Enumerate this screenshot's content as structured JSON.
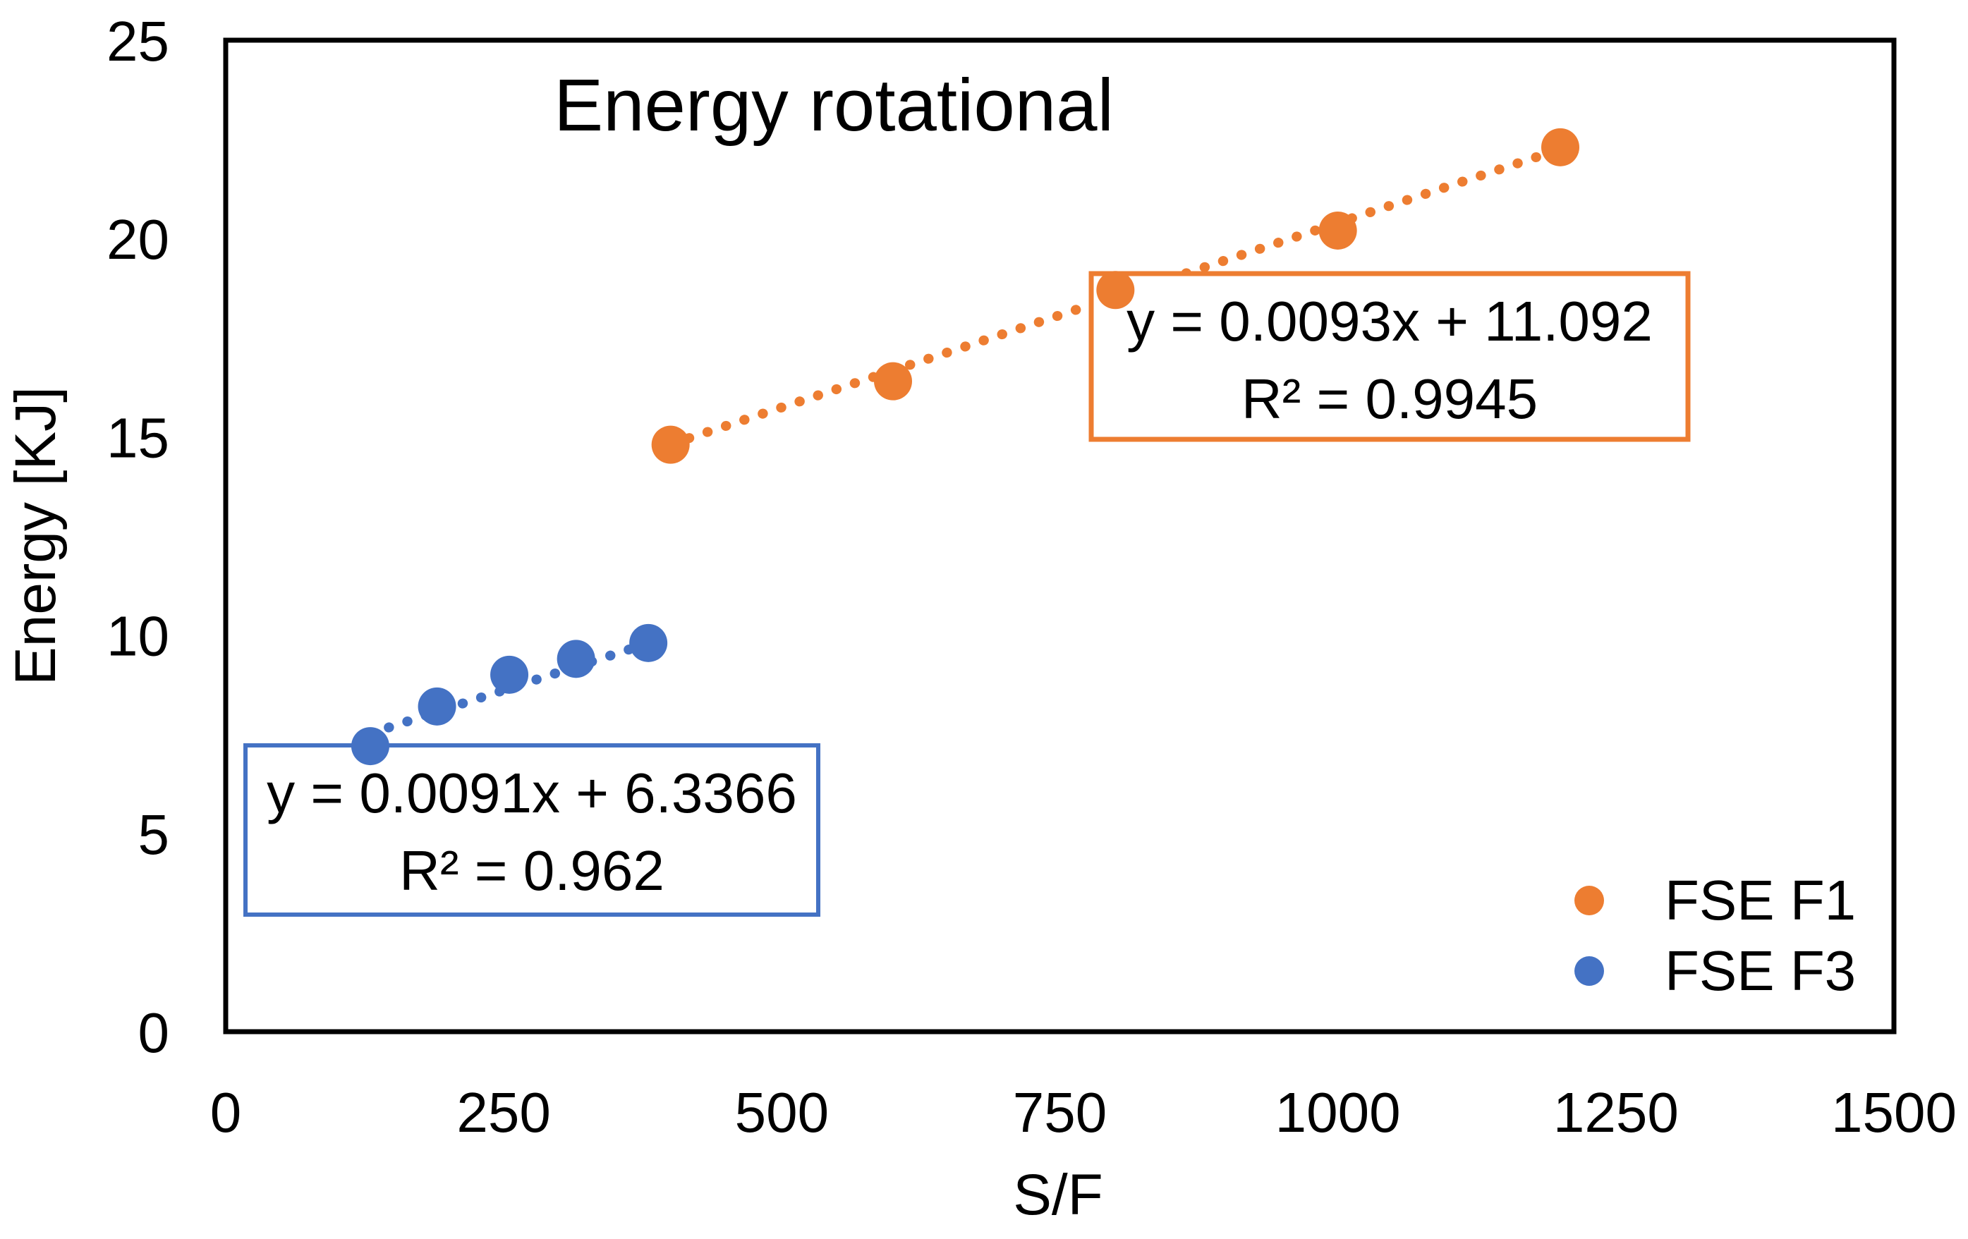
{
  "chart_data": {
    "type": "scatter",
    "title": "Energy rotational",
    "xlabel": "S/F",
    "ylabel": "Energy [KJ]",
    "xlim": [
      0,
      1500
    ],
    "ylim": [
      0,
      25
    ],
    "x_ticks": [
      "0",
      "250",
      "500",
      "750",
      "1000",
      "1250",
      "1500"
    ],
    "x_tick_values": [
      0,
      250,
      500,
      750,
      1000,
      1250,
      1500
    ],
    "y_ticks": [
      "0",
      "5",
      "10",
      "15",
      "20",
      "25"
    ],
    "y_tick_values": [
      0,
      5,
      10,
      15,
      20,
      25
    ],
    "grid": false,
    "legend_position": "inside-bottom-right",
    "series": [
      {
        "name": "FSE F1",
        "color": "#ED7D31",
        "marker": "circle",
        "points": [
          [
            400,
            14.8
          ],
          [
            600,
            16.4
          ],
          [
            800,
            18.7
          ],
          [
            1000,
            20.2
          ],
          [
            1200,
            22.3
          ]
        ],
        "trendline": {
          "style": "dotted",
          "slope": 0.0093,
          "intercept": 11.092,
          "x_range": [
            400,
            1200
          ],
          "equation": "y = 0.0093x + 11.092",
          "r_squared_label": "R² = 0.9945"
        }
      },
      {
        "name": "FSE F3",
        "color": "#4472C4",
        "marker": "circle",
        "points": [
          [
            130,
            7.2
          ],
          [
            190,
            8.2
          ],
          [
            255,
            9.0
          ],
          [
            315,
            9.4
          ],
          [
            380,
            9.8
          ]
        ],
        "trendline": {
          "style": "dotted",
          "slope": 0.0091,
          "intercept": 6.3366,
          "x_range": [
            130,
            380
          ],
          "equation": "y = 0.0091x + 6.3366",
          "r_squared_label": "R² = 0.962"
        }
      }
    ],
    "frame_color": "#000000",
    "equation_box_fill": "#ffffff"
  }
}
